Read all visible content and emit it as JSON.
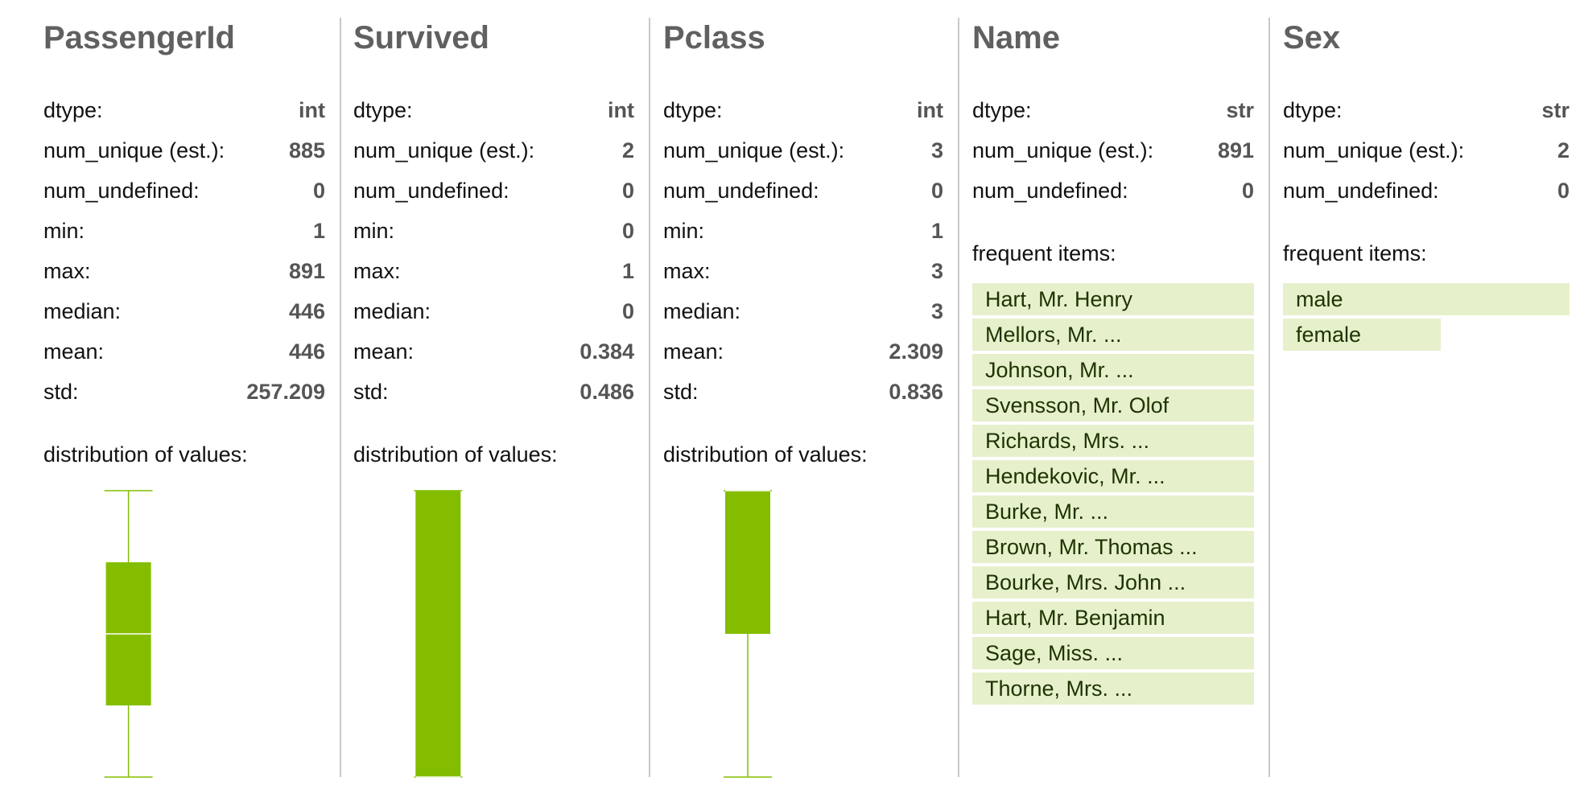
{
  "accent_color": "#84bd00",
  "frequent_item_color": "#e6f1cc",
  "stat_labels": {
    "dtype": "dtype:",
    "num_unique": "num_unique (est.):",
    "num_undefined": "num_undefined:",
    "min": "min:",
    "max": "max:",
    "median": "median:",
    "mean": "mean:",
    "std": "std:",
    "distribution": "distribution of values:",
    "frequent_items": "frequent items:"
  },
  "columns": [
    {
      "name": "PassengerId",
      "dtype": "int",
      "num_unique": "885",
      "num_undefined": "0",
      "min": "1",
      "max": "891",
      "median": "446",
      "mean": "446",
      "std": "257.209"
    },
    {
      "name": "Survived",
      "dtype": "int",
      "num_unique": "2",
      "num_undefined": "0",
      "min": "0",
      "max": "1",
      "median": "0",
      "mean": "0.384",
      "std": "0.486"
    },
    {
      "name": "Pclass",
      "dtype": "int",
      "num_unique": "3",
      "num_undefined": "0",
      "min": "1",
      "max": "3",
      "median": "3",
      "mean": "2.309",
      "std": "0.836"
    },
    {
      "name": "Name",
      "dtype": "str",
      "num_unique": "891",
      "num_undefined": "0",
      "frequent_items": [
        {
          "label": "Hart, Mr. Henry",
          "share": 1.0
        },
        {
          "label": "Mellors, Mr. ...",
          "share": 1.0
        },
        {
          "label": "Johnson, Mr. ...",
          "share": 1.0
        },
        {
          "label": "Svensson, Mr. Olof",
          "share": 1.0
        },
        {
          "label": "Richards, Mrs. ...",
          "share": 1.0
        },
        {
          "label": "Hendekovic, Mr. ...",
          "share": 1.0
        },
        {
          "label": "Burke, Mr. ...",
          "share": 1.0
        },
        {
          "label": "Brown, Mr. Thomas ...",
          "share": 1.0
        },
        {
          "label": "Bourke, Mrs. John ...",
          "share": 1.0
        },
        {
          "label": "Hart, Mr. Benjamin",
          "share": 1.0
        },
        {
          "label": "Sage, Miss. ...",
          "share": 1.0
        },
        {
          "label": "Thorne, Mrs. ...",
          "share": 1.0
        }
      ]
    },
    {
      "name": "Sex",
      "dtype": "str",
      "num_unique": "2",
      "num_undefined": "0",
      "frequent_items": [
        {
          "label": "male",
          "share": 1.0
        },
        {
          "label": "female",
          "share": 0.55
        }
      ]
    }
  ],
  "chart_data": [
    {
      "type": "box",
      "column": "PassengerId",
      "min": 1,
      "q1": 223.5,
      "median": 446,
      "q3": 668.5,
      "max": 891
    },
    {
      "type": "box",
      "column": "Survived",
      "min": 0,
      "q1": 0,
      "median": 0,
      "q3": 1,
      "max": 1
    },
    {
      "type": "box",
      "column": "Pclass",
      "min": 1,
      "q1": 2,
      "median": 3,
      "q3": 3,
      "max": 3
    }
  ]
}
